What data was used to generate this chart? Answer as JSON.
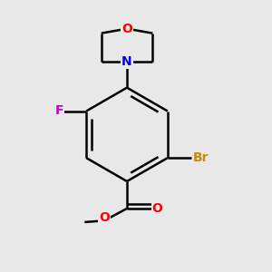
{
  "background_color": "#e8e8e8",
  "bond_color": "#000000",
  "bond_width": 1.8,
  "atom_colors": {
    "O": "#ff0000",
    "N": "#0000ee",
    "F": "#cc00cc",
    "Br": "#cc8800",
    "C": "#000000"
  },
  "font_size": 10,
  "fig_size": [
    3.0,
    3.0
  ],
  "dpi": 100
}
